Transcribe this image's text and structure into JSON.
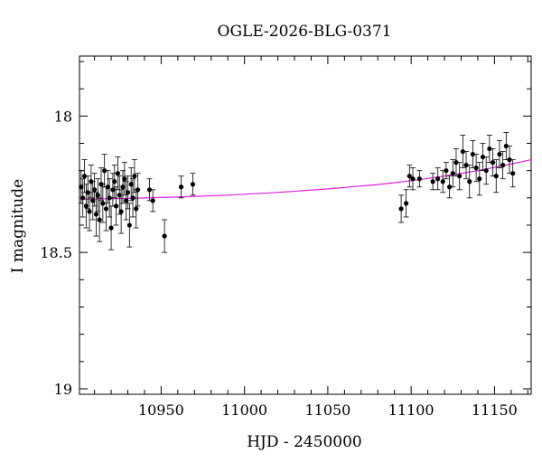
{
  "chart_data": {
    "type": "scatter",
    "title": "OGLE-2026-BLG-0371",
    "xlabel": "HJD - 2450000",
    "ylabel": "I magnitude",
    "xlim": [
      10901,
      11172
    ],
    "ylim": [
      19.02,
      17.78
    ],
    "y_inverted": true,
    "grid": false,
    "legend": "none",
    "x_ticks": [
      10950,
      11000,
      11050,
      11100,
      11150
    ],
    "x_tick_labels": [
      "10950",
      "11000",
      "11050",
      "11100",
      "11150"
    ],
    "y_ticks": [
      18,
      18.5,
      19
    ],
    "y_tick_labels": [
      "18",
      "18.5",
      "19"
    ],
    "colors": {
      "points": "#000000",
      "model": "#e020e0",
      "frame": "#000000"
    },
    "series": [
      {
        "kind": "points",
        "x": [
          10902,
          10903,
          10904,
          10905,
          10906,
          10907,
          10908,
          10909,
          10910,
          10911,
          10912,
          10913,
          10914,
          10915,
          10916,
          10917,
          10918,
          10919,
          10920,
          10921,
          10922,
          10923,
          10924,
          10925,
          10926,
          10927,
          10928,
          10929,
          10930,
          10931,
          10932,
          10933,
          10934,
          10935,
          10936,
          10943,
          10945,
          10952,
          10962,
          10969,
          11094,
          11097,
          11099,
          11101,
          11105,
          11113,
          11116,
          11119,
          11121,
          11123,
          11125,
          11127,
          11129,
          11131,
          11133,
          11135,
          11137,
          11139,
          11141,
          11143,
          11145,
          11147,
          11149,
          11151,
          11153,
          11155,
          11157,
          11159,
          11161
        ],
        "y": [
          18.26,
          18.3,
          18.22,
          18.33,
          18.28,
          18.35,
          18.24,
          18.31,
          18.27,
          18.36,
          18.29,
          18.38,
          18.25,
          18.32,
          18.2,
          18.34,
          18.26,
          18.3,
          18.41,
          18.27,
          18.24,
          18.33,
          18.21,
          18.29,
          18.35,
          18.26,
          18.23,
          18.31,
          18.28,
          18.4,
          18.25,
          18.3,
          18.22,
          18.34,
          18.27,
          18.27,
          18.31,
          18.44,
          18.26,
          18.25,
          18.34,
          18.32,
          18.22,
          18.23,
          18.23,
          18.24,
          18.23,
          18.24,
          18.2,
          18.26,
          18.21,
          18.17,
          18.22,
          18.13,
          18.18,
          18.24,
          18.14,
          18.19,
          18.23,
          18.15,
          18.2,
          18.12,
          18.17,
          18.22,
          18.14,
          18.18,
          18.11,
          18.16,
          18.21
        ],
        "err": [
          0.06,
          0.07,
          0.06,
          0.08,
          0.06,
          0.07,
          0.06,
          0.07,
          0.06,
          0.08,
          0.06,
          0.08,
          0.06,
          0.07,
          0.06,
          0.08,
          0.06,
          0.07,
          0.08,
          0.06,
          0.06,
          0.07,
          0.06,
          0.07,
          0.08,
          0.06,
          0.06,
          0.07,
          0.06,
          0.08,
          0.06,
          0.07,
          0.06,
          0.07,
          0.06,
          0.04,
          0.04,
          0.06,
          0.04,
          0.04,
          0.05,
          0.05,
          0.04,
          0.04,
          0.03,
          0.03,
          0.04,
          0.04,
          0.03,
          0.04,
          0.05,
          0.05,
          0.05,
          0.06,
          0.05,
          0.06,
          0.05,
          0.05,
          0.06,
          0.05,
          0.05,
          0.05,
          0.05,
          0.06,
          0.05,
          0.05,
          0.05,
          0.05,
          0.05
        ]
      },
      {
        "kind": "line",
        "x": [
          10901,
          10930,
          10960,
          10990,
          11020,
          11050,
          11080,
          11100,
          11120,
          11140,
          11160,
          11172
        ],
        "y": [
          18.305,
          18.302,
          18.297,
          18.29,
          18.28,
          18.267,
          18.251,
          18.237,
          18.22,
          18.2,
          18.176,
          18.16
        ]
      }
    ]
  }
}
